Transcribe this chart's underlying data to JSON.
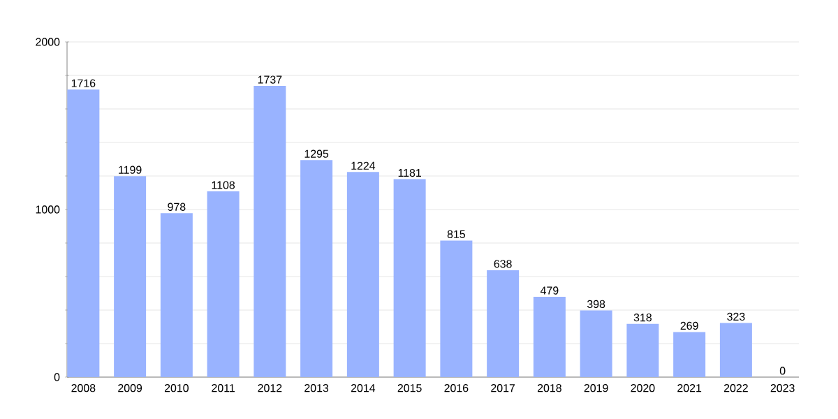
{
  "chart_data": {
    "type": "bar",
    "categories": [
      "2008",
      "2009",
      "2010",
      "2011",
      "2012",
      "2013",
      "2014",
      "2015",
      "2016",
      "2017",
      "2018",
      "2019",
      "2020",
      "2021",
      "2022",
      "2023"
    ],
    "values": [
      1716,
      1199,
      978,
      1108,
      1737,
      1295,
      1224,
      1181,
      815,
      638,
      479,
      398,
      318,
      269,
      323,
      0
    ],
    "color": "#99b3ff",
    "ylim": [
      0,
      2000
    ],
    "yticks": [
      0,
      {
        "value": 200,
        "label": null
      },
      {
        "value": 400,
        "label": null
      },
      {
        "value": 600,
        "label": null
      },
      {
        "value": 800,
        "label": null
      },
      1000,
      {
        "value": 1200,
        "label": null
      },
      {
        "value": 1400,
        "label": null
      },
      {
        "value": 1600,
        "label": null
      },
      {
        "value": 1800,
        "label": null
      },
      2000
    ],
    "grid": "y",
    "data_labels": true
  }
}
